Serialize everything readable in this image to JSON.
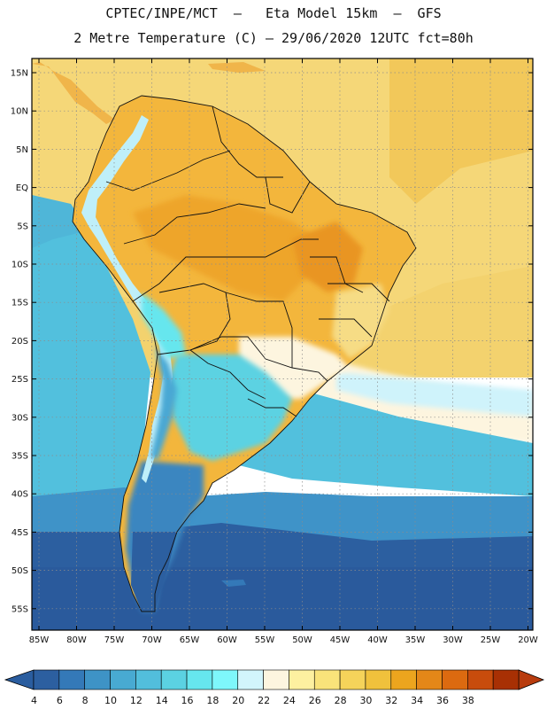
{
  "header": {
    "title_line1": "CPTEC/INPE/MCT  –   Eta Model 15km  –  GFS",
    "title_line2": "2 Metre Temperature (C) – 29/06/2020 12UTC fct=80h"
  },
  "axes": {
    "lat_labels": [
      "15N",
      "10N",
      "5N",
      "EQ",
      "5S",
      "10S",
      "15S",
      "20S",
      "25S",
      "30S",
      "35S",
      "40S",
      "45S",
      "50S",
      "55S"
    ],
    "lon_labels": [
      "85W",
      "80W",
      "75W",
      "70W",
      "65W",
      "60W",
      "55W",
      "50W",
      "45W",
      "40W",
      "35W",
      "30W",
      "25W",
      "20W"
    ]
  },
  "colorbar": {
    "labels": [
      "4",
      "6",
      "8",
      "10",
      "12",
      "14",
      "16",
      "18",
      "20",
      "22",
      "24",
      "26",
      "28",
      "30",
      "32",
      "34",
      "36",
      "38"
    ],
    "colors": [
      "#2c5fa0",
      "#3479b8",
      "#3e93c6",
      "#48aad2",
      "#52bedc",
      "#5bd2e2",
      "#66e6ee",
      "#7ef7fb",
      "#d2f5fc",
      "#fdf5df",
      "#fdf0a0",
      "#f9e37a",
      "#f5d35a",
      "#f0c13c",
      "#eca51e",
      "#e48718",
      "#dc6a10",
      "#c84c0c",
      "#a83004"
    ],
    "under_color": "#2a5d9f",
    "over_color": "#b83c0e"
  },
  "colors": {
    "ocean_deep": "#2c5fa0",
    "ocean_mid": "#3f93c8",
    "ocean_cool": "#52c0dd",
    "ocean_warm": "#f3d573",
    "land_hot": "#f0b030",
    "andes_cold": "#dff7fb"
  }
}
